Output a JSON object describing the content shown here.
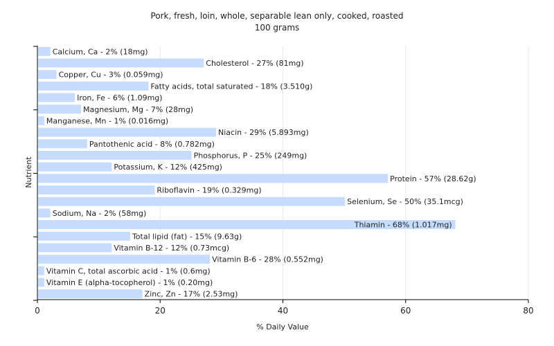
{
  "chart_data": {
    "type": "bar",
    "orientation": "horizontal",
    "title": "Pork, fresh, loin, whole, separable lean only, cooked, roasted",
    "subtitle": "100 grams",
    "xlabel": "% Daily Value",
    "ylabel": "Nutrient",
    "xlim": [
      0,
      80
    ],
    "xticks": [
      0,
      20,
      40,
      60,
      80
    ],
    "grid": true,
    "bar_color": "#c6dcff",
    "categories": [
      "Calcium, Ca",
      "Cholesterol",
      "Copper, Cu",
      "Fatty acids, total saturated",
      "Iron, Fe",
      "Magnesium, Mg",
      "Manganese, Mn",
      "Niacin",
      "Pantothenic acid",
      "Phosphorus, P",
      "Potassium, K",
      "Protein",
      "Riboflavin",
      "Selenium, Se",
      "Sodium, Na",
      "Thiamin",
      "Total lipid (fat)",
      "Vitamin B-12",
      "Vitamin B-6",
      "Vitamin C, total ascorbic acid",
      "Vitamin E (alpha-tocopherol)",
      "Zinc, Zn"
    ],
    "values": [
      2,
      27,
      3,
      18,
      6,
      7,
      1,
      29,
      8,
      25,
      12,
      57,
      19,
      50,
      2,
      68,
      15,
      12,
      28,
      1,
      1,
      17
    ],
    "labels": [
      "Calcium, Ca - 2% (18mg)",
      "Cholesterol - 27% (81mg)",
      "Copper, Cu - 3% (0.059mg)",
      "Fatty acids, total saturated - 18% (3.510g)",
      "Iron, Fe - 6% (1.09mg)",
      "Magnesium, Mg - 7% (28mg)",
      "Manganese, Mn - 1% (0.016mg)",
      "Niacin - 29% (5.893mg)",
      "Pantothenic acid - 8% (0.782mg)",
      "Phosphorus, P - 25% (249mg)",
      "Potassium, K - 12% (425mg)",
      "Protein - 57% (28.62g)",
      "Riboflavin - 19% (0.329mg)",
      "Selenium, Se - 50% (35.1mcg)",
      "Sodium, Na - 2% (58mg)",
      "Thiamin - 68% (1.017mg)",
      "Total lipid (fat) - 15% (9.63g)",
      "Vitamin B-12 - 12% (0.73mcg)",
      "Vitamin B-6 - 28% (0.552mg)",
      "Vitamin C, total ascorbic acid - 1% (0.6mg)",
      "Vitamin E (alpha-tocopherol) - 1% (0.20mg)",
      "Zinc, Zn - 17% (2.53mg)"
    ]
  }
}
